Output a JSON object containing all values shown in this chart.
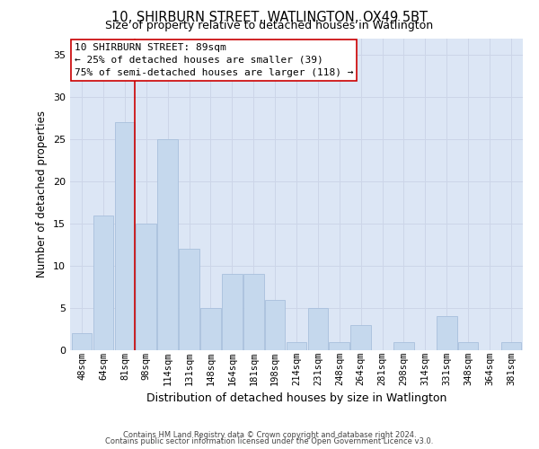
{
  "title": "10, SHIRBURN STREET, WATLINGTON, OX49 5BT",
  "subtitle": "Size of property relative to detached houses in Watlington",
  "xlabel": "Distribution of detached houses by size in Watlington",
  "ylabel": "Number of detached properties",
  "footer_line1": "Contains HM Land Registry data © Crown copyright and database right 2024.",
  "footer_line2": "Contains public sector information licensed under the Open Government Licence v3.0.",
  "bar_labels": [
    "48sqm",
    "64sqm",
    "81sqm",
    "98sqm",
    "114sqm",
    "131sqm",
    "148sqm",
    "164sqm",
    "181sqm",
    "198sqm",
    "214sqm",
    "231sqm",
    "248sqm",
    "264sqm",
    "281sqm",
    "298sqm",
    "314sqm",
    "331sqm",
    "348sqm",
    "364sqm",
    "381sqm"
  ],
  "bar_values": [
    2,
    16,
    27,
    15,
    25,
    12,
    5,
    9,
    9,
    6,
    1,
    5,
    1,
    3,
    0,
    1,
    0,
    4,
    1,
    0,
    1
  ],
  "bar_color": "#c5d8ed",
  "bar_edge_color": "#a8c0dc",
  "grid_color": "#ccd5e8",
  "bg_color": "#dce6f5",
  "annotation_box_color": "#cc0000",
  "vline_bin_index": 2,
  "annotation_line1": "10 SHIRBURN STREET: 89sqm",
  "annotation_line2": "← 25% of detached houses are smaller (39)",
  "annotation_line3": "75% of semi-detached houses are larger (118) →",
  "ylim": [
    0,
    37
  ],
  "yticks": [
    0,
    5,
    10,
    15,
    20,
    25,
    30,
    35
  ],
  "title_fontsize": 10.5,
  "subtitle_fontsize": 9,
  "xlabel_fontsize": 9,
  "ylabel_fontsize": 8.5,
  "tick_fontsize": 7.5,
  "footer_fontsize": 6,
  "annotation_fontsize": 8
}
